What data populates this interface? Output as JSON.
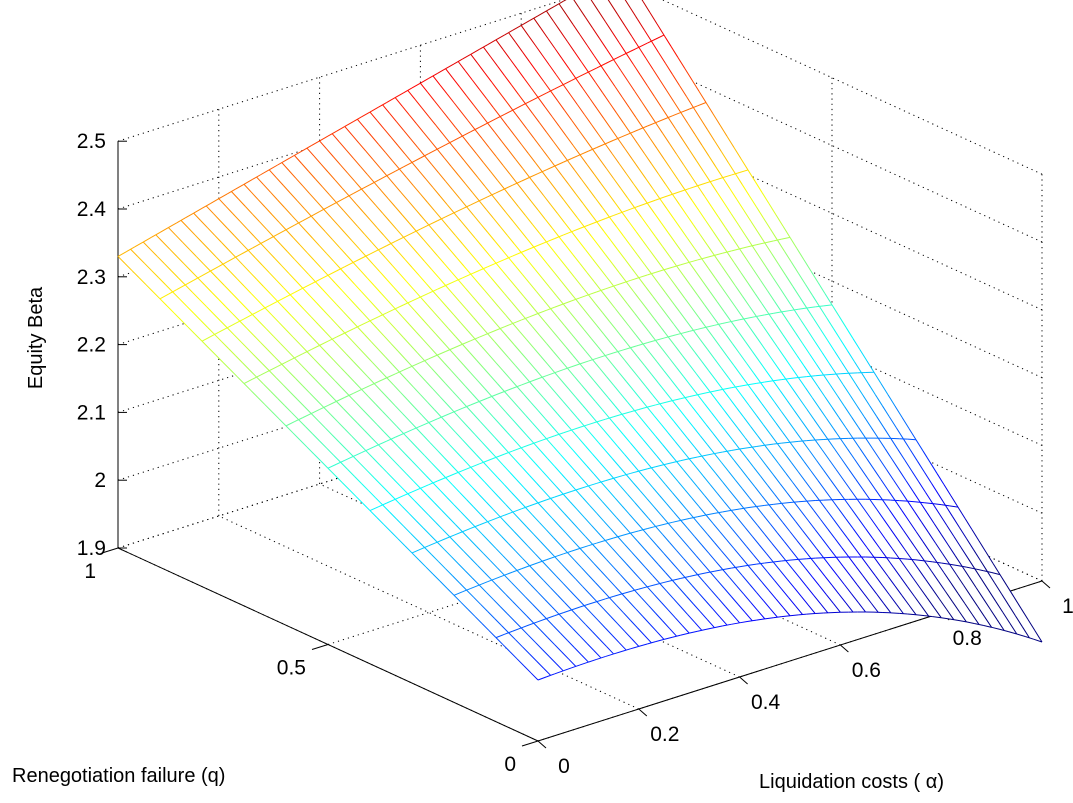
{
  "chart_data": {
    "type": "surface",
    "title": "",
    "xlabel": "Liquidation costs ( α)",
    "ylabel": "Renegotiation failure (q)",
    "zlabel": "Equity Beta",
    "x_ticks": [
      "0",
      "0.2",
      "0.4",
      "0.6",
      "0.8",
      "1"
    ],
    "y_ticks": [
      "0",
      "0.5",
      "1"
    ],
    "z_ticks": [
      "1.9",
      "2",
      "2.1",
      "2.2",
      "2.3",
      "2.4",
      "2.5"
    ],
    "xlim": [
      0,
      1
    ],
    "ylim": [
      0,
      1
    ],
    "zlim": [
      1.9,
      2.5
    ],
    "grid": true,
    "colormap": "jet",
    "mesh": "wireframe, 41 x 11 grid lines",
    "corner_values": [
      {
        "alpha": 0,
        "q": 0,
        "beta": 1.99
      },
      {
        "alpha": 1,
        "q": 0,
        "beta": 1.9
      },
      {
        "alpha": 0,
        "q": 1,
        "beta": 2.33
      },
      {
        "alpha": 1,
        "q": 1,
        "beta": 2.52
      }
    ],
    "series": [
      {
        "q": 0,
        "alpha": [
          0,
          0.2,
          0.4,
          0.6,
          0.8,
          1
        ],
        "beta": [
          1.99,
          1.99,
          1.98,
          1.97,
          1.95,
          1.9
        ]
      },
      {
        "q": 0.5,
        "alpha": [
          0,
          0.2,
          0.4,
          0.6,
          0.8,
          1
        ],
        "beta": [
          2.16,
          2.18,
          2.19,
          2.2,
          2.2,
          2.2
        ]
      },
      {
        "q": 1,
        "alpha": [
          0,
          0.2,
          0.4,
          0.6,
          0.8,
          1
        ],
        "beta": [
          2.33,
          2.37,
          2.41,
          2.45,
          2.48,
          2.52
        ]
      }
    ]
  }
}
